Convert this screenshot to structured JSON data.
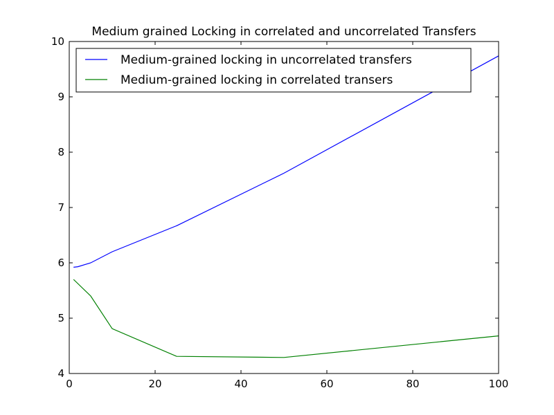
{
  "chart_data": {
    "type": "line",
    "title": "Medium grained Locking in correlated and uncorrelated Transfers",
    "xlabel": "",
    "ylabel": "",
    "xlim": [
      0,
      100
    ],
    "ylim": [
      4,
      10
    ],
    "x_ticks": [
      "0",
      "20",
      "40",
      "60",
      "80",
      "100"
    ],
    "y_ticks": [
      "4",
      "5",
      "6",
      "7",
      "8",
      "9",
      "10"
    ],
    "grid": false,
    "legend_position": "upper-left",
    "series": [
      {
        "name": "Medium-grained locking in uncorrelated transfers",
        "color": "#0000ff",
        "x": [
          1,
          2,
          5,
          10,
          25,
          50,
          100
        ],
        "values": [
          5.92,
          5.93,
          6.0,
          6.2,
          6.67,
          7.62,
          9.74
        ]
      },
      {
        "name": "Medium-grained locking in correlated transers",
        "color": "#008000",
        "x": [
          1,
          5,
          10,
          25,
          50,
          100
        ],
        "values": [
          5.7,
          5.4,
          4.81,
          4.31,
          4.29,
          4.68
        ]
      }
    ]
  }
}
